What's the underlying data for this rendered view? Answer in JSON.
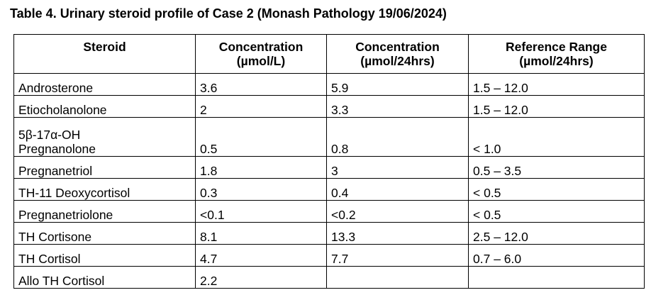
{
  "caption": "Table 4. Urinary steroid profile of Case 2 (Monash Pathology 19/06/2024)",
  "headers": [
    {
      "line1": "Steroid",
      "line2": ""
    },
    {
      "line1": "Concentration",
      "line2": "(µmol/L)"
    },
    {
      "line1": "Concentration",
      "line2": "(µmol/24hrs)"
    },
    {
      "line1": "Reference Range",
      "line2": "(µmol/24hrs)"
    }
  ],
  "rows": [
    {
      "steroid": "Androsterone",
      "steroid_line2": "",
      "conc_l": "3.6",
      "conc_24": "5.9",
      "ref": "1.5 – 12.0"
    },
    {
      "steroid": "Etiocholanolone",
      "steroid_line2": "",
      "conc_l": "2",
      "conc_24": "3.3",
      "ref": "1.5 – 12.0"
    },
    {
      "steroid": "5β-17α-OH",
      "steroid_line2": "Pregnanolone",
      "conc_l": "0.5",
      "conc_24": "0.8",
      "ref": "< 1.0"
    },
    {
      "steroid": "Pregnanetriol",
      "steroid_line2": "",
      "conc_l": "1.8",
      "conc_24": "3",
      "ref": "0.5 – 3.5"
    },
    {
      "steroid": "TH-11 Deoxycortisol",
      "steroid_line2": "",
      "conc_l": "0.3",
      "conc_24": "0.4",
      "ref": "< 0.5"
    },
    {
      "steroid": "Pregnanetriolone",
      "steroid_line2": "",
      "conc_l": "<0.1",
      "conc_24": "<0.2",
      "ref": "< 0.5"
    },
    {
      "steroid": "TH Cortisone",
      "steroid_line2": "",
      "conc_l": "8.1",
      "conc_24": "13.3",
      "ref": "2.5 – 12.0"
    },
    {
      "steroid": "TH Cortisol",
      "steroid_line2": "",
      "conc_l": "4.7",
      "conc_24": "7.7",
      "ref": "0.7 – 6.0"
    },
    {
      "steroid": "Allo TH Cortisol",
      "steroid_line2": "",
      "conc_l": "2.2",
      "conc_24": "",
      "ref": ""
    }
  ]
}
